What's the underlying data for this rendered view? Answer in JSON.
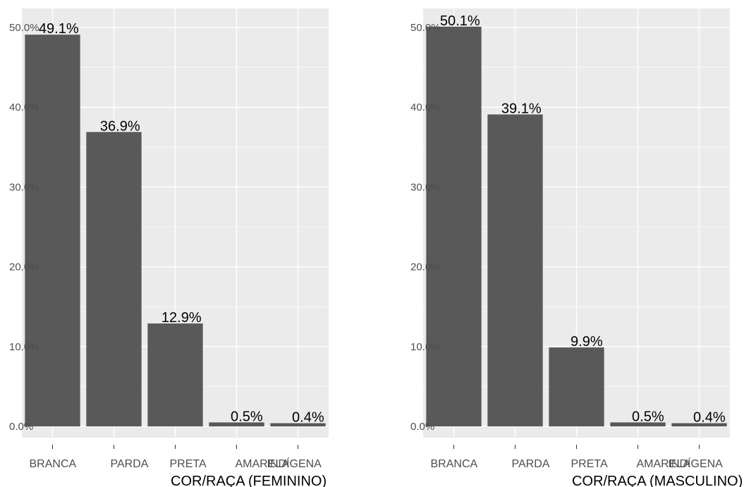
{
  "chart_data": [
    {
      "type": "bar",
      "categories": [
        "BRANCA",
        "PARDA",
        "PRETA",
        "AMARELA",
        "INDÍGENA"
      ],
      "values": [
        49.1,
        36.9,
        12.9,
        0.5,
        0.4
      ],
      "data_labels": [
        "49.1%",
        "36.9%",
        "12.9%",
        "0.5%",
        "0.4%"
      ],
      "y_ticks": [
        0,
        10,
        20,
        30,
        40,
        50
      ],
      "y_tick_labels": [
        "0.0%",
        "10.0%",
        "20.0%",
        "30.0%",
        "40.0%",
        "50.0%"
      ],
      "ylim": [
        0,
        51.5
      ],
      "xlabel": "COR/RAÇA (FEMININO)",
      "ylabel": "",
      "title": "",
      "grid": true,
      "colors": {
        "panel": "#ebebeb",
        "grid": "#ffffff",
        "bar": "#595959"
      }
    },
    {
      "type": "bar",
      "categories": [
        "BRANCA",
        "PARDA",
        "PRETA",
        "AMARELA",
        "INDÍGENA"
      ],
      "values": [
        50.1,
        39.1,
        9.9,
        0.5,
        0.4
      ],
      "data_labels": [
        "50.1%",
        "39.1%",
        "9.9%",
        "0.5%",
        "0.4%"
      ],
      "y_ticks": [
        0,
        10,
        20,
        30,
        40,
        50
      ],
      "y_tick_labels": [
        "0.0%",
        "10.0%",
        "20.0%",
        "30.0%",
        "40.0%",
        "50.0%"
      ],
      "ylim": [
        0,
        51.5
      ],
      "xlabel": "COR/RAÇA (MASCULINO)",
      "ylabel": "",
      "title": "",
      "grid": true,
      "colors": {
        "panel": "#ebebeb",
        "grid": "#ffffff",
        "bar": "#595959"
      }
    }
  ]
}
